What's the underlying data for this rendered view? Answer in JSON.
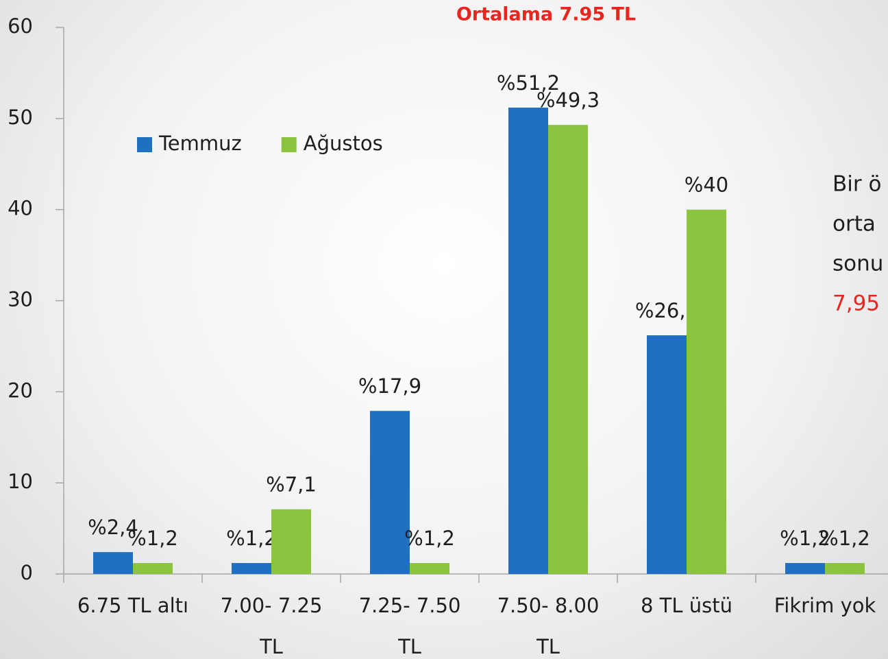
{
  "chart_data": {
    "type": "bar",
    "title": "Ortalama 7.95 TL",
    "categories": [
      "6.75  TL altı",
      "7.00- 7.25\nTL",
      "7.25- 7.50\nTL",
      "7.50- 8.00\nTL",
      "8 TL üstü",
      "Fikrim yok"
    ],
    "series": [
      {
        "name": "Temmuz",
        "color": "#1f70c1",
        "values": [
          2.4,
          1.2,
          17.9,
          51.2,
          26.2,
          1.2
        ],
        "value_labels": [
          "%2,4",
          "%1,2",
          "%17,9",
          "%51,2",
          "%26,2",
          "%1,2"
        ]
      },
      {
        "name": "Ağustos",
        "color": "#8cc43f",
        "values": [
          1.2,
          7.1,
          1.2,
          49.3,
          40,
          1.2
        ],
        "value_labels": [
          "%1,2",
          "%7,1",
          "%1,2",
          "%49,3",
          "%40",
          "%1,2"
        ]
      }
    ],
    "ylim": [
      0,
      60
    ],
    "yticks": [
      0,
      10,
      20,
      30,
      40,
      50,
      60
    ],
    "legend": "upper left",
    "annotation": [
      "Bir ö",
      "orta",
      "sonu",
      "7,95"
    ]
  }
}
